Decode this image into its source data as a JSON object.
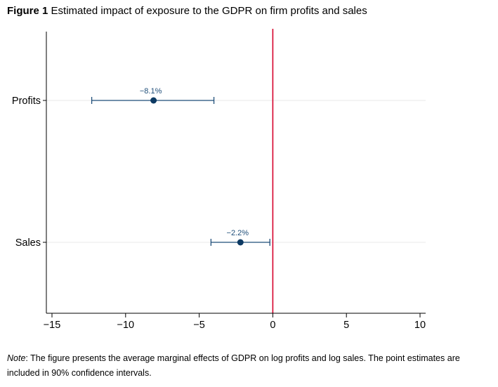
{
  "figure": {
    "label": "Figure 1",
    "title": "Estimated impact of exposure to the GDPR on firm profits and sales"
  },
  "note": {
    "label": "Note",
    "text": ": The figure presents the average marginal effects of GDPR on log profits and log sales. The point estimates are included in 90% confidence intervals."
  },
  "colors": {
    "series": "#1f4e79",
    "reference_line": "#d6002a",
    "grid": "#eaeaea",
    "axis": "#000000"
  },
  "chart_data": {
    "type": "scatter",
    "subtype": "coefficient-plot-with-confidence-intervals",
    "title": "",
    "xlabel": "",
    "ylabel": "",
    "xlim": [
      -15,
      10
    ],
    "x_ticks": [
      -15,
      -10,
      -5,
      0,
      5,
      10
    ],
    "x_tick_labels": [
      "−15",
      "−10",
      "−5",
      "0",
      "5",
      "10"
    ],
    "categories": [
      "Profits",
      "Sales"
    ],
    "series": [
      {
        "values": [
          -8.1,
          -2.2
        ],
        "ci_lower": [
          -12.3,
          -4.2
        ],
        "ci_upper": [
          -4.0,
          -0.2
        ],
        "data_labels": [
          "−8.1%",
          "−2.2%"
        ]
      }
    ],
    "reference_line": {
      "axis": "x",
      "value": 0
    },
    "grid": "horizontal",
    "confidence_level": "90%"
  }
}
